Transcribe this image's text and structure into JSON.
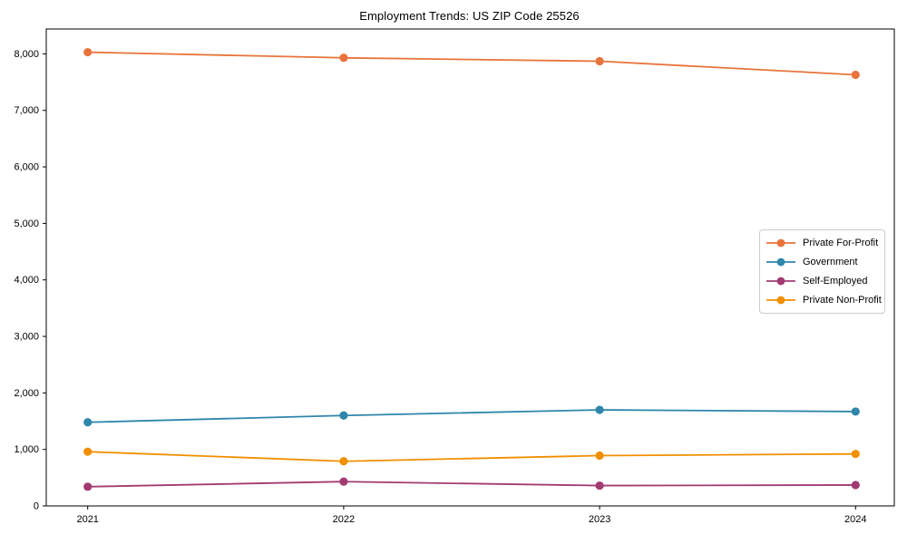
{
  "chart_data": {
    "type": "line",
    "title": "Employment Trends: US ZIP Code 25526",
    "x": [
      2021,
      2022,
      2023,
      2024
    ],
    "x_tick_labels": [
      "2021",
      "2022",
      "2023",
      "2024"
    ],
    "series": [
      {
        "name": "Private For-Profit",
        "color": "#E8743B",
        "values": [
          8030,
          7930,
          7870,
          7630
        ]
      },
      {
        "name": "Government",
        "color": "#2E86AB",
        "values": [
          1480,
          1600,
          1700,
          1670
        ]
      },
      {
        "name": "Self-Employed",
        "color": "#A23B72",
        "values": [
          340,
          430,
          360,
          370
        ]
      },
      {
        "name": "Private Non-Profit",
        "color": "#F18F01",
        "values": [
          960,
          790,
          890,
          920
        ]
      }
    ],
    "xlabel": "",
    "ylabel": "",
    "ylim": [
      0,
      8440
    ],
    "yticks": [
      0,
      1000,
      2000,
      3000,
      4000,
      5000,
      6000,
      7000,
      8000
    ],
    "ytick_labels": [
      "0",
      "1,000",
      "2,000",
      "3,000",
      "4,000",
      "5,000",
      "6,000",
      "7,000",
      "8,000"
    ],
    "legend_position": "center right",
    "grid": false,
    "marker": "circle",
    "axis_color": "#000000",
    "legend_border_color": "#cccccc"
  }
}
